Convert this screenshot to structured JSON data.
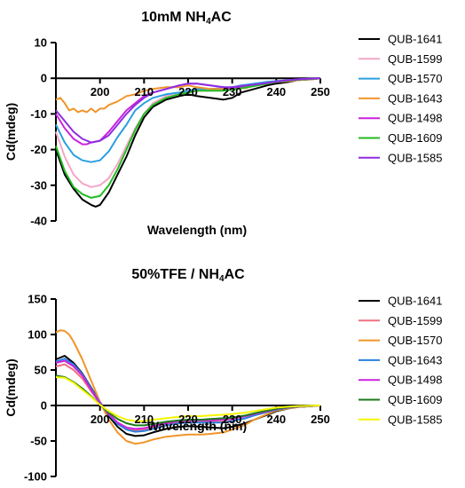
{
  "chart_data": [
    {
      "type": "line",
      "title": "10mM NH4AC",
      "title_parts": [
        "10mM NH",
        "4",
        "AC"
      ],
      "xlabel": "Wavelength (nm)",
      "ylabel": "Cd(mdeg)",
      "xlim": [
        190,
        250
      ],
      "ylim": [
        -40,
        10
      ],
      "xticks": [
        200,
        210,
        220,
        230,
        240,
        250
      ],
      "yticks": [
        10,
        0,
        -10,
        -20,
        -30,
        -40
      ],
      "grid": false,
      "legend_position": "right",
      "series": [
        {
          "name": "QUB-1641",
          "color": "#000000",
          "x": [
            190,
            192,
            194,
            196,
            198,
            199,
            200,
            202,
            204,
            206,
            208,
            210,
            212,
            215,
            218,
            220,
            222,
            225,
            228,
            230,
            232,
            235,
            238,
            240,
            243,
            245,
            248,
            250
          ],
          "y": [
            -20,
            -27,
            -31,
            -34,
            -35.5,
            -36,
            -35.5,
            -32,
            -27,
            -22,
            -16,
            -11,
            -8,
            -6,
            -5,
            -4.5,
            -5,
            -5.5,
            -6,
            -5.5,
            -4,
            -3,
            -2,
            -1.5,
            -1,
            -0.5,
            -0.3,
            0
          ]
        },
        {
          "name": "QUB-1599",
          "color": "#f4a6c8",
          "x": [
            190,
            192,
            194,
            196,
            198,
            200,
            202,
            204,
            206,
            208,
            210,
            212,
            215,
            218,
            220,
            222,
            225,
            228,
            230,
            232,
            235,
            238,
            240,
            243,
            245,
            248,
            250
          ],
          "y": [
            -15,
            -22,
            -27,
            -29.5,
            -30.5,
            -30,
            -28,
            -24,
            -19,
            -14,
            -10,
            -7,
            -5,
            -4.5,
            -4,
            -3.5,
            -3.5,
            -3.2,
            -3,
            -2.5,
            -2,
            -1.5,
            -1,
            -0.8,
            -0.5,
            -0.2,
            0
          ]
        },
        {
          "name": "QUB-1570",
          "color": "#2a9fe0",
          "x": [
            190,
            192,
            194,
            196,
            198,
            200,
            202,
            204,
            206,
            208,
            210,
            212,
            215,
            218,
            220,
            222,
            225,
            228,
            230,
            232,
            235,
            238,
            240,
            243,
            245,
            248,
            250
          ],
          "y": [
            -13,
            -18,
            -21.5,
            -23,
            -23.5,
            -23,
            -20.5,
            -16.5,
            -13,
            -9,
            -7,
            -5.5,
            -4.5,
            -4,
            -3.5,
            -3,
            -3,
            -2.8,
            -2.5,
            -2,
            -1.5,
            -1,
            -0.8,
            -0.5,
            -0.3,
            -0.1,
            0
          ]
        },
        {
          "name": "QUB-1643",
          "color": "#f0952a",
          "x": [
            190,
            191,
            192,
            193,
            194,
            195,
            196,
            197,
            198,
            199,
            200,
            201,
            202,
            204,
            206,
            208,
            210,
            212,
            215,
            218,
            220,
            222,
            225,
            228,
            230,
            233,
            235,
            238,
            240,
            243,
            245,
            248,
            250
          ],
          "y": [
            -6,
            -5.5,
            -7,
            -9,
            -8.5,
            -9.5,
            -9,
            -9.5,
            -8.5,
            -9.5,
            -8.5,
            -8.5,
            -7.5,
            -6.5,
            -5,
            -4.5,
            -3.5,
            -3,
            -2.5,
            -2.5,
            -2,
            -2.5,
            -3,
            -3,
            -2.5,
            -2.8,
            -2,
            -1.5,
            -1,
            -0.8,
            -0.5,
            -0.3,
            0
          ]
        },
        {
          "name": "QUB-1498",
          "color": "#cc22dd",
          "x": [
            190,
            192,
            194,
            196,
            197,
            198,
            200,
            202,
            204,
            206,
            208,
            210,
            212,
            215,
            218,
            220,
            222,
            225,
            228,
            230,
            232,
            235,
            238,
            240,
            243,
            245,
            248,
            250
          ],
          "y": [
            -10,
            -14,
            -17,
            -18.5,
            -18.5,
            -18,
            -17.5,
            -15,
            -12,
            -9,
            -7,
            -5,
            -4,
            -3,
            -2,
            -1.5,
            -1.5,
            -2,
            -2.5,
            -2.8,
            -2.5,
            -2,
            -1.5,
            -1,
            -0.6,
            -0.4,
            -0.2,
            0
          ]
        },
        {
          "name": "QUB-1609",
          "color": "#22bb22",
          "x": [
            190,
            192,
            194,
            196,
            198,
            200,
            202,
            204,
            206,
            208,
            210,
            212,
            215,
            218,
            220,
            222,
            225,
            228,
            230,
            232,
            235,
            238,
            240,
            243,
            245,
            248,
            250
          ],
          "y": [
            -19,
            -26,
            -30.5,
            -32.5,
            -33.5,
            -33,
            -30,
            -25.5,
            -20,
            -14.5,
            -10,
            -7.5,
            -5.5,
            -4.5,
            -4,
            -3.5,
            -3.5,
            -3.5,
            -3.2,
            -2.8,
            -2.2,
            -1.5,
            -1,
            -0.6,
            -0.4,
            -0.2,
            0
          ]
        },
        {
          "name": "QUB-1585",
          "color": "#8e2de2",
          "x": [
            190,
            192,
            194,
            196,
            198,
            200,
            202,
            204,
            206,
            208,
            210,
            212,
            215,
            218,
            220,
            222,
            225,
            228,
            230,
            232,
            235,
            238,
            240,
            243,
            245,
            248,
            250
          ],
          "y": [
            -9,
            -12,
            -15,
            -17,
            -18,
            -17.5,
            -16,
            -13,
            -10,
            -7.5,
            -5.5,
            -4,
            -3,
            -2,
            -1.5,
            -1.5,
            -2,
            -2.5,
            -2.5,
            -2.2,
            -1.8,
            -1.3,
            -0.9,
            -0.5,
            -0.3,
            -0.1,
            0
          ]
        }
      ]
    },
    {
      "type": "line",
      "title": "50%TFE / NH4AC",
      "title_parts": [
        "50%TFE / NH",
        "4",
        "AC"
      ],
      "xlabel": "Wavelength (nm)",
      "ylabel": "Cd(mdeg)",
      "xlim": [
        190,
        250
      ],
      "ylim": [
        -100,
        150
      ],
      "xticks": [
        200,
        210,
        220,
        230,
        240,
        250
      ],
      "yticks": [
        150,
        100,
        50,
        0,
        -50,
        -100
      ],
      "grid": false,
      "legend_position": "right",
      "series": [
        {
          "name": "QUB-1641",
          "color": "#000000",
          "x": [
            190,
            192,
            194,
            196,
            198,
            200,
            202,
            204,
            206,
            208,
            210,
            212,
            215,
            218,
            220,
            223,
            225,
            228,
            230,
            233,
            235,
            238,
            240,
            243,
            245,
            248,
            250
          ],
          "y": [
            65,
            70,
            60,
            45,
            25,
            5,
            -15,
            -30,
            -40,
            -43,
            -42,
            -38,
            -33,
            -30,
            -29,
            -30,
            -31,
            -32,
            -30,
            -25,
            -20,
            -13,
            -8,
            -4,
            -2,
            -1,
            0
          ]
        },
        {
          "name": "QUB-1599",
          "color": "#f07080",
          "x": [
            190,
            192,
            194,
            196,
            198,
            200,
            202,
            204,
            206,
            208,
            210,
            212,
            215,
            218,
            220,
            223,
            225,
            228,
            230,
            233,
            235,
            238,
            240,
            243,
            245,
            248,
            250
          ],
          "y": [
            55,
            58,
            50,
            38,
            20,
            3,
            -12,
            -24,
            -32,
            -35,
            -34,
            -31,
            -27,
            -24,
            -23,
            -23,
            -23,
            -23,
            -22,
            -18,
            -14,
            -9,
            -6,
            -3,
            -1.5,
            -0.5,
            0
          ]
        },
        {
          "name": "QUB-1570",
          "color": "#f0952a",
          "x": [
            190,
            191,
            192,
            193,
            194,
            196,
            198,
            200,
            202,
            204,
            206,
            208,
            210,
            212,
            215,
            218,
            220,
            223,
            225,
            228,
            230,
            233,
            235,
            238,
            240,
            243,
            245,
            248,
            250
          ],
          "y": [
            103,
            106,
            105,
            100,
            90,
            65,
            35,
            5,
            -20,
            -38,
            -50,
            -54,
            -52,
            -48,
            -44,
            -42,
            -41,
            -41,
            -40,
            -38,
            -34,
            -27,
            -20,
            -12,
            -7,
            -4,
            -2,
            -0.8,
            0
          ]
        },
        {
          "name": "QUB-1643",
          "color": "#2a7fe0",
          "x": [
            190,
            192,
            194,
            196,
            198,
            200,
            202,
            204,
            206,
            208,
            210,
            212,
            215,
            218,
            220,
            223,
            225,
            228,
            230,
            233,
            235,
            238,
            240,
            243,
            245,
            248,
            250
          ],
          "y": [
            62,
            66,
            58,
            44,
            24,
            4,
            -13,
            -26,
            -34,
            -37,
            -36,
            -33,
            -28,
            -25,
            -24,
            -24,
            -24,
            -24,
            -22,
            -18,
            -14,
            -9,
            -6,
            -3,
            -1.5,
            -0.5,
            0
          ]
        },
        {
          "name": "QUB-1498",
          "color": "#cc22dd",
          "x": [
            190,
            192,
            194,
            196,
            198,
            200,
            202,
            204,
            206,
            208,
            210,
            212,
            215,
            218,
            220,
            223,
            225,
            228,
            230,
            233,
            235,
            238,
            240,
            243,
            245,
            248,
            250
          ],
          "y": [
            60,
            63,
            55,
            42,
            22,
            3,
            -12,
            -24,
            -31,
            -33,
            -32,
            -29,
            -25,
            -22,
            -21,
            -21,
            -21,
            -20,
            -19,
            -15,
            -12,
            -8,
            -5,
            -2.5,
            -1.2,
            -0.4,
            0
          ]
        },
        {
          "name": "QUB-1609",
          "color": "#1a7a1a",
          "x": [
            190,
            192,
            194,
            196,
            198,
            200,
            202,
            204,
            206,
            208,
            210,
            212,
            215,
            218,
            220,
            223,
            225,
            228,
            230,
            233,
            235,
            238,
            240,
            243,
            245,
            248,
            250
          ],
          "y": [
            42,
            40,
            33,
            24,
            13,
            1,
            -10,
            -19,
            -25,
            -28,
            -28,
            -26,
            -23,
            -21,
            -20,
            -20,
            -19,
            -18,
            -17,
            -14,
            -11,
            -7,
            -4.5,
            -2.2,
            -1,
            -0.3,
            0
          ]
        },
        {
          "name": "QUB-1585",
          "color": "#f5f500",
          "x": [
            190,
            192,
            194,
            196,
            198,
            200,
            202,
            204,
            206,
            208,
            210,
            212,
            215,
            218,
            220,
            223,
            225,
            228,
            230,
            233,
            235,
            238,
            240,
            243,
            245,
            248,
            250
          ],
          "y": [
            40,
            39,
            32,
            22,
            12,
            1,
            -8,
            -15,
            -20,
            -22,
            -22,
            -20,
            -18,
            -16,
            -15,
            -15,
            -14,
            -13,
            -12,
            -10,
            -8,
            -5,
            -3,
            -1.5,
            -0.8,
            -0.2,
            0
          ]
        }
      ]
    }
  ]
}
